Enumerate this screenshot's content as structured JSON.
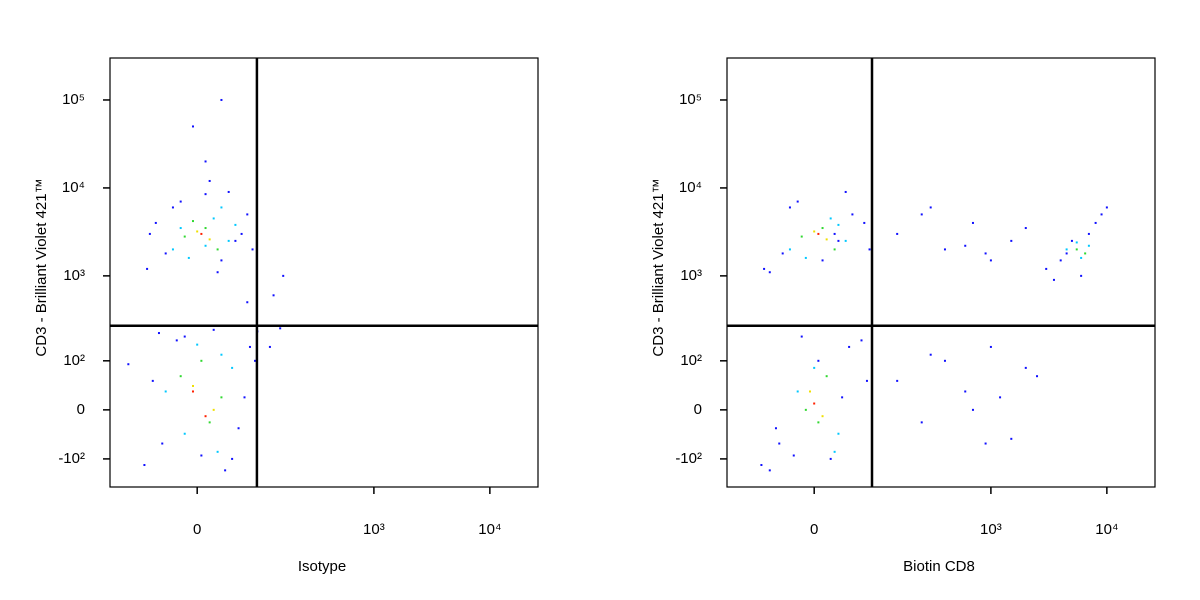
{
  "chart_data": [
    {
      "type": "scatter",
      "x_label": "Isotype",
      "y_label": "CD3 - Brilliant Violet 421™",
      "scale": "biexponential",
      "xlim": [
        -164,
        26000
      ],
      "ylim": [
        -222,
        300000
      ],
      "xticks": [
        0,
        {
          "value": 1000,
          "label": "10³"
        },
        {
          "value": 10000,
          "label": "10⁴"
        }
      ],
      "yticks": [
        {
          "value": -100,
          "label": "-10²"
        },
        0,
        {
          "value": 100,
          "label": "10²"
        },
        {
          "value": 1000,
          "label": "10³"
        },
        {
          "value": 10000,
          "label": "10⁴"
        },
        {
          "value": 100000,
          "label": "10⁵"
        }
      ],
      "gates": {
        "x": 89,
        "y": 268
      },
      "series": [
        {
          "color": "#1010ff",
          "x": [
            -70,
            -40,
            -20,
            10,
            30,
            50,
            70,
            -55,
            25,
            60,
            -30,
            40,
            80,
            -65,
            15,
            -75,
            -45,
            -15,
            20,
            45,
            75,
            -60,
            35,
            65,
            -25,
            5,
            85,
            -50,
            55,
            90,
            120,
            150,
            -110,
            70,
            10,
            -5,
            30,
            160,
            130
          ],
          "y": [
            1200,
            1800,
            7000,
            8500,
            1500,
            2500,
            5000,
            4000,
            1100,
            3000,
            6000,
            9000,
            2000,
            3000,
            12000,
            -120,
            -60,
            200,
            240,
            -100,
            150,
            50,
            -140,
            20,
            180,
            -90,
            100,
            220,
            -30,
            230,
            150,
            250,
            90,
            500,
            20000,
            50000,
            100000,
            1000,
            600
          ]
        },
        {
          "color": "#00c8ff",
          "x": [
            -30,
            20,
            40,
            -10,
            30,
            -20,
            10,
            50,
            -40,
            30,
            -15,
            45,
            0,
            25
          ],
          "y": [
            2000,
            4500,
            2500,
            1600,
            6000,
            3500,
            2200,
            3800,
            30,
            120,
            -40,
            80,
            160,
            -80
          ]
        },
        {
          "color": "#30d830",
          "x": [
            -15,
            10,
            25,
            -5,
            -20,
            15,
            5,
            30
          ],
          "y": [
            2800,
            3500,
            2000,
            4200,
            60,
            -20,
            100,
            20
          ]
        },
        {
          "color": "#f0e000",
          "x": [
            0,
            15,
            -5,
            20
          ],
          "y": [
            3200,
            2600,
            40,
            0
          ]
        },
        {
          "color": "#ff2000",
          "x": [
            5,
            -5,
            10
          ],
          "y": [
            3000,
            30,
            -10
          ]
        }
      ]
    },
    {
      "type": "scatter",
      "x_label": "Biotin CD8",
      "y_label": "CD3 - Brilliant Violet 421™",
      "scale": "biexponential",
      "xlim": [
        -164,
        26000
      ],
      "ylim": [
        -222,
        300000
      ],
      "xticks": [
        0,
        {
          "value": 1000,
          "label": "10³"
        },
        {
          "value": 10000,
          "label": "10⁴"
        }
      ],
      "yticks": [
        {
          "value": -100,
          "label": "-10²"
        },
        0,
        {
          "value": 100,
          "label": "10²"
        },
        {
          "value": 1000,
          "label": "10³"
        },
        {
          "value": 10000,
          "label": "10⁴"
        },
        {
          "value": 100000,
          "label": "10⁵"
        }
      ],
      "gates": {
        "x": 85,
        "y": 268
      },
      "series": [
        {
          "color": "#1010ff",
          "x": [
            -70,
            -40,
            -20,
            10,
            30,
            50,
            70,
            -60,
            25,
            -30,
            40,
            80,
            -75,
            -45,
            -15,
            20,
            45,
            75,
            -60,
            35,
            65,
            -25,
            5,
            85,
            -50,
            3000,
            4000,
            6000,
            8000,
            10000,
            5000,
            7000,
            3500,
            9000,
            4500,
            150,
            250,
            400,
            700,
            1000,
            1500,
            2000,
            300,
            600,
            900,
            150,
            250,
            400,
            700,
            1000,
            1500,
            2000,
            300,
            600,
            900,
            1200,
            2500
          ],
          "y": [
            1200,
            1800,
            7000,
            1500,
            2500,
            5000,
            4000,
            1100,
            3000,
            6000,
            9000,
            2000,
            -120,
            -60,
            200,
            -100,
            150,
            50,
            -140,
            20,
            180,
            -90,
            100,
            220,
            -30,
            1200,
            1500,
            1000,
            4000,
            6000,
            2500,
            3000,
            900,
            5000,
            1800,
            3000,
            5000,
            2000,
            4000,
            1500,
            2500,
            3500,
            6000,
            2200,
            1800,
            50,
            -20,
            100,
            0,
            150,
            -50,
            80,
            120,
            30,
            -60,
            20,
            60
          ]
        },
        {
          "color": "#00c8ff",
          "x": [
            -30,
            20,
            40,
            -10,
            30,
            4500,
            6000,
            5500,
            7000,
            -20,
            30,
            0,
            25
          ],
          "y": [
            2000,
            4500,
            2500,
            1600,
            3800,
            2000,
            1600,
            2400,
            2200,
            30,
            -40,
            80,
            -80
          ]
        },
        {
          "color": "#30d830",
          "x": [
            -15,
            10,
            25,
            5500,
            6500,
            -10,
            15,
            5
          ],
          "y": [
            2800,
            3500,
            2000,
            2000,
            1800,
            0,
            60,
            -20
          ]
        },
        {
          "color": "#f0e000",
          "x": [
            0,
            15,
            -5,
            10
          ],
          "y": [
            3200,
            2600,
            30,
            -10
          ]
        },
        {
          "color": "#ff2000",
          "x": [
            5,
            0
          ],
          "y": [
            3000,
            10
          ]
        }
      ]
    }
  ]
}
